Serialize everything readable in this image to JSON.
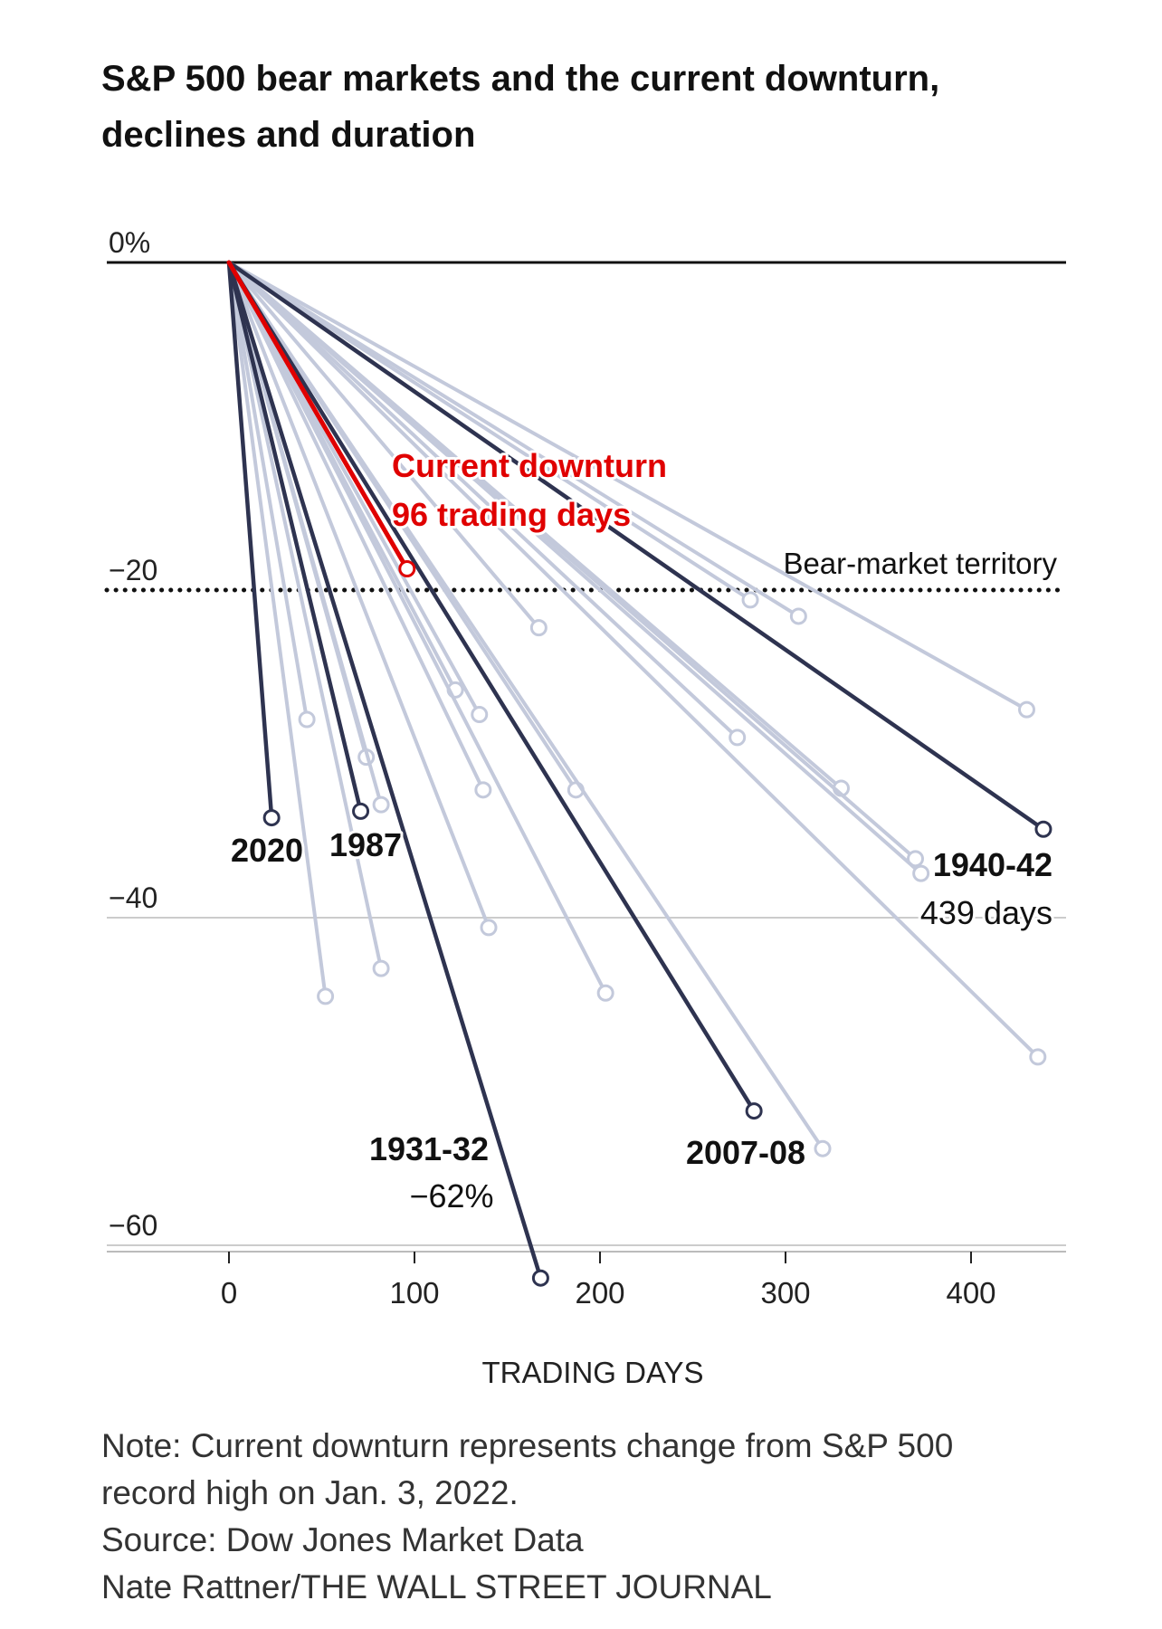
{
  "title_lines": [
    "S&P 500 bear markets and the current downturn,",
    "declines and duration"
  ],
  "notes": [
    "Note: Current downturn represents change from S&P 500",
    "record high on Jan. 3, 2022.",
    "Source: Dow Jones Market Data",
    "Nate Rattner/THE WALL STREET JOURNAL"
  ],
  "colors": {
    "highlight": "#2e3350",
    "background_series": "#c3c9db",
    "current": "#e00000",
    "axis": "#111111",
    "grid": "#cccccc",
    "threshold": "#111111"
  },
  "chart_data": {
    "type": "line",
    "xlabel": "TRADING DAYS",
    "ylabel": "",
    "xlim": [
      -65,
      450
    ],
    "ylim": [
      -62,
      0
    ],
    "x_ticks": [
      0,
      100,
      200,
      300,
      400
    ],
    "x_tick_labels": [
      "0",
      "100",
      "200",
      "300",
      "400"
    ],
    "y_ticks": [
      0,
      -20,
      -40,
      -60
    ],
    "y_tick_labels": [
      "0%",
      "−20",
      "−40",
      "−60"
    ],
    "threshold": {
      "value": -20,
      "label": "Bear-market territory",
      "style": "dotted"
    },
    "grid": "horizontal",
    "series_description": "Each bear market is a straight line from the record high at (0, 0%) to its trough.",
    "series": [
      {
        "name": "Current downturn",
        "label_lines": [
          "Current downturn",
          "96 trading days"
        ],
        "group": "current",
        "x": 96,
        "y": -18.7
      },
      {
        "name": "2020",
        "label_lines": [
          "2020"
        ],
        "group": "highlight",
        "x": 23,
        "y": -33.9
      },
      {
        "name": "1987",
        "label_lines": [
          "1987"
        ],
        "group": "highlight",
        "x": 71,
        "y": -33.5
      },
      {
        "name": "1931-32",
        "label_lines": [
          "1931-32",
          "−62%"
        ],
        "group": "highlight",
        "x": 168,
        "y": -62.0
      },
      {
        "name": "2007-08",
        "label_lines": [
          "2007-08"
        ],
        "group": "highlight",
        "x": 283,
        "y": -51.8
      },
      {
        "name": "1940-42",
        "label_lines": [
          "1940-42",
          "439 days"
        ],
        "group": "highlight",
        "x": 439,
        "y": -34.6
      },
      {
        "group": "other",
        "x": 42,
        "y": -27.9
      },
      {
        "group": "other",
        "x": 52,
        "y": -44.8
      },
      {
        "group": "other",
        "x": 74,
        "y": -30.2
      },
      {
        "group": "other",
        "x": 82,
        "y": -33.1
      },
      {
        "group": "other",
        "x": 82,
        "y": -43.1
      },
      {
        "group": "other",
        "x": 122,
        "y": -26.1
      },
      {
        "group": "other",
        "x": 135,
        "y": -27.6
      },
      {
        "group": "other",
        "x": 137,
        "y": -32.2
      },
      {
        "group": "other",
        "x": 140,
        "y": -40.6
      },
      {
        "group": "other",
        "x": 167,
        "y": -22.3
      },
      {
        "group": "other",
        "x": 187,
        "y": -32.2
      },
      {
        "group": "other",
        "x": 203,
        "y": -44.6
      },
      {
        "group": "other",
        "x": 274,
        "y": -29.0
      },
      {
        "group": "other",
        "x": 281,
        "y": -20.6
      },
      {
        "group": "other",
        "x": 307,
        "y": -21.6
      },
      {
        "group": "other",
        "x": 320,
        "y": -54.1
      },
      {
        "group": "other",
        "x": 330,
        "y": -32.1
      },
      {
        "group": "other",
        "x": 370,
        "y": -36.4
      },
      {
        "group": "other",
        "x": 373,
        "y": -37.3
      },
      {
        "group": "other",
        "x": 430,
        "y": -27.3
      },
      {
        "group": "other",
        "x": 436,
        "y": -48.5
      }
    ]
  }
}
